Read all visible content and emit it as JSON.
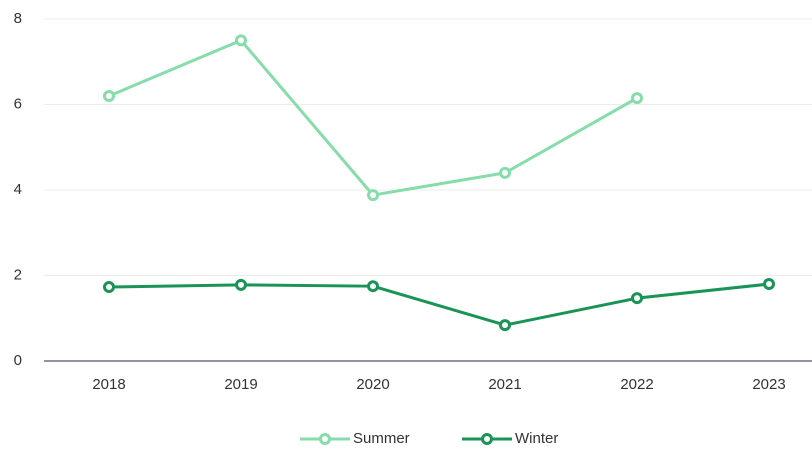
{
  "chart_data": {
    "type": "line",
    "categories": [
      "2018",
      "2019",
      "2020",
      "2021",
      "2022",
      "2023"
    ],
    "series": [
      {
        "name": "Summer",
        "color": "#86dcaa",
        "values": [
          6.2,
          7.5,
          3.88,
          4.4,
          6.15,
          null
        ]
      },
      {
        "name": "Winter",
        "color": "#1a9456",
        "values": [
          1.73,
          1.78,
          1.75,
          0.84,
          1.47,
          1.8
        ]
      }
    ],
    "ylim": [
      0,
      8
    ],
    "yticks": [
      0,
      2,
      4,
      6,
      8
    ],
    "grid": true
  }
}
